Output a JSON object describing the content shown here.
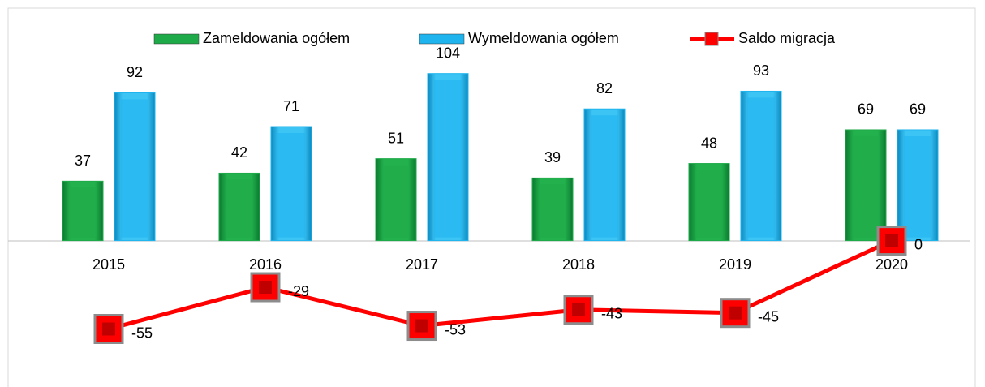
{
  "chart_data": {
    "type": "bar",
    "categories": [
      "2015",
      "2016",
      "2017",
      "2018",
      "2019",
      "2020"
    ],
    "series": [
      {
        "name": "Zameldowania ogółem",
        "type": "bar",
        "color": "#1faa4a",
        "values": [
          37,
          42,
          51,
          39,
          48,
          69
        ]
      },
      {
        "name": "Wymeldowania ogółem",
        "type": "bar",
        "color": "#1fb4ee",
        "values": [
          92,
          71,
          104,
          82,
          93,
          69
        ]
      },
      {
        "name": "Saldo migracja",
        "type": "line",
        "color": "#ff0000",
        "values": [
          -55,
          -29,
          -53,
          -43,
          -45,
          0
        ]
      }
    ],
    "ylim": [
      -80,
      120
    ],
    "legend": "top"
  }
}
